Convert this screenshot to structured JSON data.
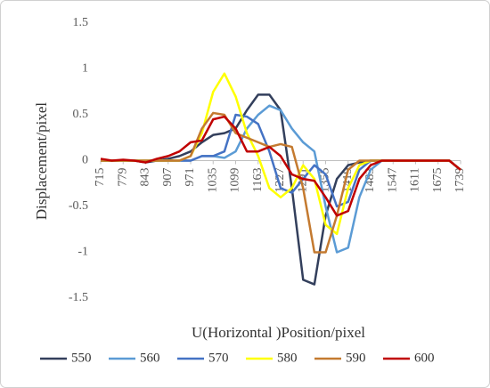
{
  "chart_data": {
    "type": "line",
    "x_label": "U(Horizontal )Position/pixel",
    "y_label": "Displacement/pixel",
    "x": [
      715,
      747,
      779,
      811,
      843,
      875,
      907,
      939,
      971,
      1003,
      1035,
      1067,
      1099,
      1131,
      1163,
      1195,
      1227,
      1259,
      1291,
      1323,
      1355,
      1387,
      1419,
      1451,
      1483,
      1515,
      1547,
      1579,
      1611,
      1643,
      1675,
      1707,
      1739
    ],
    "xlim": [
      715,
      1739
    ],
    "xticks": [
      715,
      779,
      843,
      907,
      971,
      1035,
      1099,
      1163,
      1227,
      1291,
      1355,
      1419,
      1483,
      1547,
      1611,
      1675,
      1739
    ],
    "ylim": [
      -1.5,
      1.5
    ],
    "yticks": [
      1.5,
      1,
      0.5,
      0,
      -0.5,
      -1,
      -1.5
    ],
    "legend": "bottom",
    "series": [
      {
        "name": "550",
        "color": "#333f5c",
        "values": [
          0,
          0,
          0,
          0,
          -0.02,
          0,
          0.02,
          0.05,
          0.1,
          0.2,
          0.28,
          0.3,
          0.35,
          0.55,
          0.72,
          0.72,
          0.55,
          -0.3,
          -1.3,
          -1.35,
          -0.6,
          -0.2,
          -0.05,
          -0.02,
          0,
          0,
          0,
          0,
          0,
          0,
          0,
          0,
          -0.1
        ]
      },
      {
        "name": "560",
        "color": "#5b9bd5",
        "values": [
          0,
          0,
          0,
          0,
          0,
          0,
          0,
          0,
          0,
          0.05,
          0.05,
          0.03,
          0.1,
          0.35,
          0.5,
          0.6,
          0.55,
          0.35,
          0.2,
          0.1,
          -0.5,
          -1.0,
          -0.95,
          -0.4,
          -0.1,
          0,
          0,
          0,
          0,
          0,
          0,
          0,
          -0.1
        ]
      },
      {
        "name": "570",
        "color": "#4472c4",
        "values": [
          0,
          0,
          0,
          0,
          0,
          0,
          0,
          0,
          0,
          0.05,
          0.05,
          0.1,
          0.5,
          0.48,
          0.4,
          0.1,
          -0.3,
          -0.35,
          -0.2,
          -0.05,
          -0.15,
          -0.5,
          -0.45,
          -0.1,
          0,
          0,
          0,
          0,
          0,
          0,
          0,
          0,
          -0.1
        ]
      },
      {
        "name": "580",
        "color": "#ffff00",
        "values": [
          0,
          0,
          0,
          0,
          0,
          0,
          0,
          0,
          0.05,
          0.3,
          0.75,
          0.95,
          0.7,
          0.3,
          0.05,
          -0.3,
          -0.4,
          -0.3,
          -0.05,
          -0.2,
          -0.7,
          -0.8,
          -0.3,
          -0.05,
          0,
          0,
          0,
          0,
          0,
          0,
          0,
          0,
          -0.1
        ]
      },
      {
        "name": "590",
        "color": "#c47a30",
        "values": [
          0,
          0,
          0,
          0,
          0,
          0,
          0,
          0,
          0.05,
          0.35,
          0.52,
          0.5,
          0.3,
          0.25,
          0.2,
          0.15,
          0.18,
          0.15,
          -0.3,
          -1.0,
          -1.0,
          -0.6,
          -0.1,
          0,
          0,
          0,
          0,
          0,
          0,
          0,
          0,
          0,
          -0.1
        ]
      },
      {
        "name": "600",
        "color": "#c00000",
        "values": [
          0.02,
          0,
          0.01,
          0,
          -0.02,
          0.02,
          0.05,
          0.1,
          0.2,
          0.22,
          0.45,
          0.48,
          0.35,
          0.1,
          0.1,
          0.15,
          0.05,
          -0.15,
          -0.2,
          -0.22,
          -0.4,
          -0.6,
          -0.55,
          -0.2,
          -0.05,
          0,
          0,
          0,
          0,
          0,
          0,
          0,
          -0.1
        ]
      }
    ]
  }
}
